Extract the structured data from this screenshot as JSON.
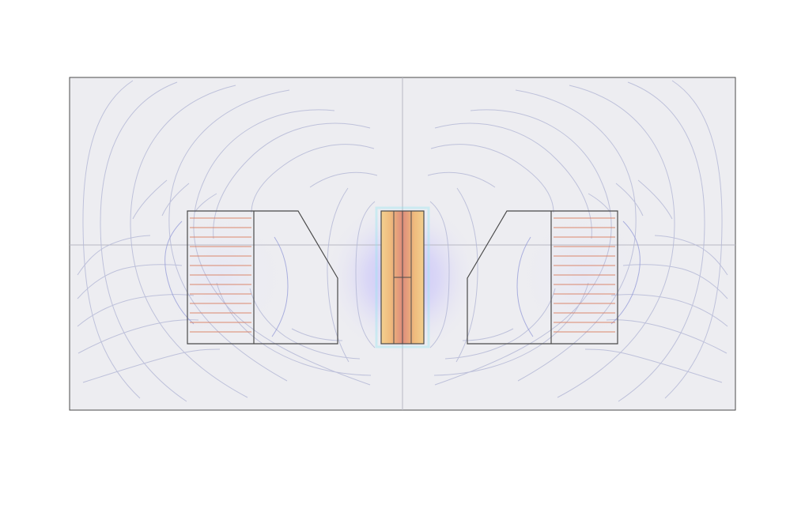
{
  "scene": {
    "type": "magnetic field simulation plot",
    "colors": {
      "domain_background": "#ededf1",
      "domain_border": "#4a4a4a",
      "axis_guides": "#b9b9c4",
      "field_lines": "#b4b8d6",
      "field_lines_strong": "#8f95d6",
      "coil_lines": "#d97a5a",
      "core_outline": "#4a4a4a",
      "center_hot": "#f0b070",
      "center_core": "#f3cf8f",
      "center_mid": "#ee9a7a",
      "glow": "#b4a8f3"
    }
  }
}
